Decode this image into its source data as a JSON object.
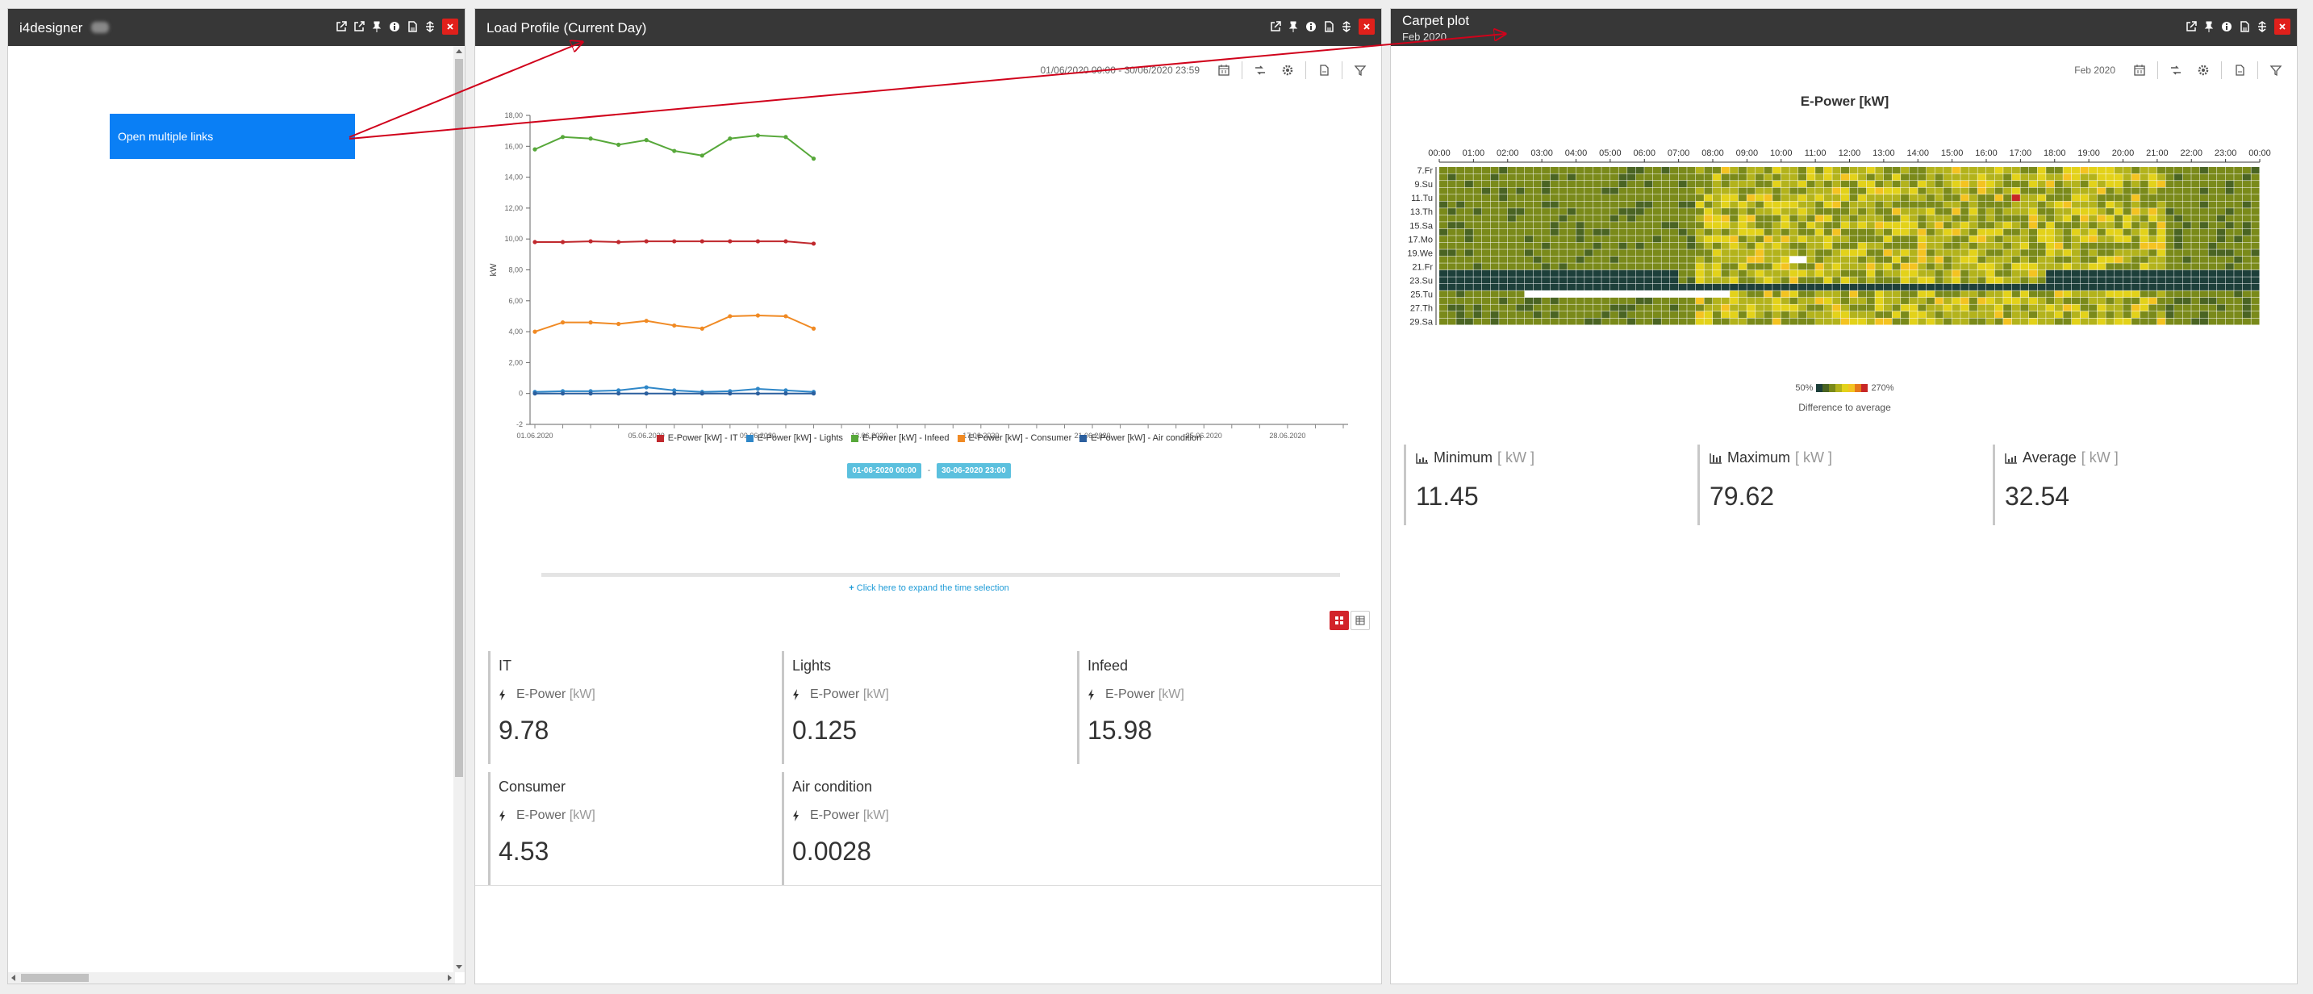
{
  "panel_left": {
    "title": "i4designer",
    "link_button": "Open multiple links"
  },
  "panel_load": {
    "title": "Load Profile (Current Day)",
    "date_range": "01/06/2020 00:00 - 30/06/2020 23:59",
    "chart_data": {
      "type": "line",
      "title": "",
      "ylabel": "kW",
      "xlabel": "",
      "ylim": [
        -2,
        18
      ],
      "yticks": [
        "-2",
        "0",
        "2,00",
        "4,00",
        "6,00",
        "8,00",
        "10,00",
        "12,00",
        "14,00",
        "16,00",
        "18,00"
      ],
      "xticks": [
        "01.06.2020",
        "05.06.2020",
        "09.06.2020",
        "13.06.2020",
        "17.06.2020",
        "21.06.2020",
        "25.06.2020",
        "28.06.2020"
      ],
      "x_day_range": [
        1,
        30
      ],
      "x": [
        1,
        2,
        3,
        4,
        5,
        6,
        7,
        8,
        9,
        10,
        11
      ],
      "series": [
        {
          "name": "E-Power [kW] - IT",
          "color": "#c0282d",
          "values": [
            9.8,
            9.8,
            9.85,
            9.8,
            9.85,
            9.85,
            9.85,
            9.85,
            9.85,
            9.85,
            9.7
          ]
        },
        {
          "name": "E-Power [kW] - Lights",
          "color": "#2f87c8",
          "values": [
            0.1,
            0.15,
            0.15,
            0.2,
            0.4,
            0.2,
            0.1,
            0.15,
            0.3,
            0.2,
            0.1
          ]
        },
        {
          "name": "E-Power [kW] - Infeed",
          "color": "#57a83a",
          "values": [
            15.8,
            16.6,
            16.5,
            16.1,
            16.4,
            15.7,
            15.4,
            16.5,
            16.7,
            16.6,
            15.2
          ]
        },
        {
          "name": "E-Power [kW] - Consumer",
          "color": "#f08a24",
          "values": [
            4.0,
            4.6,
            4.6,
            4.5,
            4.7,
            4.4,
            4.2,
            5.0,
            5.05,
            5.0,
            4.2
          ]
        },
        {
          "name": "E-Power [kW] - Air condition",
          "color": "#2b5f9e",
          "values": [
            0.0,
            0.0,
            0.0,
            0.0,
            0.0,
            0.0,
            0.0,
            0.0,
            0.0,
            0.0,
            0.0
          ]
        }
      ],
      "legend_placement": "bottom",
      "grid": false
    },
    "range_start": "01-06-2020 00:00",
    "range_sep": "-",
    "range_end": "30-06-2020 23:00",
    "expand_text": "Click here to expand the time selection",
    "metric_label": "E-Power",
    "metric_unit": "[kW]",
    "cards": [
      {
        "name": "IT",
        "value": "9.78"
      },
      {
        "name": "Lights",
        "value": "0.125"
      },
      {
        "name": "Infeed",
        "value": "15.98"
      },
      {
        "name": "Consumer",
        "value": "4.53"
      },
      {
        "name": "Air condition",
        "value": "0.0028"
      }
    ]
  },
  "panel_carpet": {
    "title": "Carpet plot",
    "subtitle": "Feb 2020",
    "period": "Feb 2020",
    "chart_data": {
      "type": "heatmap",
      "title": "E-Power [kW]",
      "hours": [
        "00:00",
        "01:00",
        "02:00",
        "03:00",
        "04:00",
        "05:00",
        "06:00",
        "07:00",
        "08:00",
        "09:00",
        "10:00",
        "11:00",
        "12:00",
        "13:00",
        "14:00",
        "15:00",
        "16:00",
        "17:00",
        "18:00",
        "19:00",
        "20:00",
        "21:00",
        "22:00",
        "23:00",
        "00:00"
      ],
      "day_labels": [
        "7.Fr",
        "9.Su",
        "11.Tu",
        "13.Th",
        "15.Sa",
        "17.Mo",
        "19.We",
        "21.Fr",
        "23.Su",
        "25.Tu",
        "27.Th",
        "29.Sa"
      ],
      "first_day": 7,
      "rows": 23,
      "cols": 96,
      "scale_min": "50%",
      "scale_max": "270%",
      "scale_caption": "Difference to average",
      "scale_colors": [
        "#1d3f3a",
        "#4a6423",
        "#7a8a1a",
        "#b3b31c",
        "#e3d21a",
        "#f4c321",
        "#e6791c",
        "#c82626"
      ]
    },
    "stats": [
      {
        "label": "Minimum",
        "unit": "[ kW ]",
        "value": "11.45"
      },
      {
        "label": "Maximum",
        "unit": "[ kW ]",
        "value": "79.62"
      },
      {
        "label": "Average",
        "unit": "[ kW ]",
        "value": "32.54"
      }
    ]
  },
  "colors": {
    "header_bg": "#373737",
    "close_red": "#e0201b",
    "link_blue": "#0a7ff5",
    "date_chip": "#5bc0de",
    "annotation_red": "#d0021b"
  }
}
